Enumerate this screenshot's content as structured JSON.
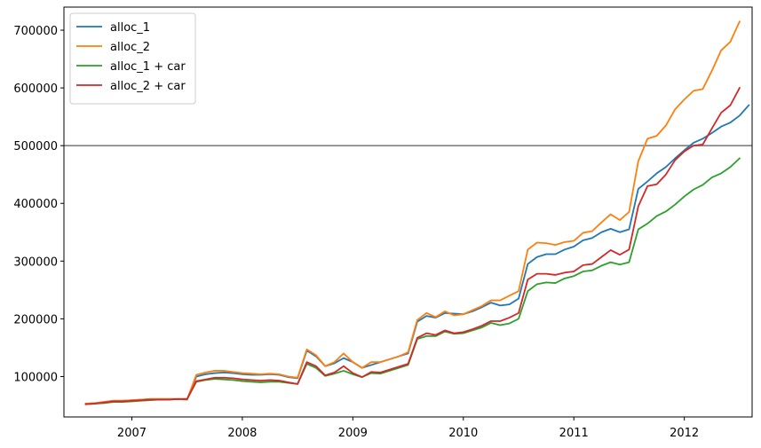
{
  "chart_data": {
    "type": "line",
    "title": "",
    "xlabel": "",
    "ylabel": "",
    "x_start": "2006-08",
    "x_step": "monthly",
    "xlim": [
      "2006-05-20",
      "2012-08-12"
    ],
    "ylim": [
      30000,
      740000
    ],
    "x_tick_labels": [
      "2007",
      "2008",
      "2009",
      "2010",
      "2011",
      "2012"
    ],
    "y_tick_values": [
      100000,
      200000,
      300000,
      400000,
      500000,
      600000,
      700000
    ],
    "y_tick_labels": [
      "100000",
      "200000",
      "300000",
      "400000",
      "500000",
      "600000",
      "700000"
    ],
    "hline": {
      "y": 500000,
      "color": "#808080"
    },
    "legend_position": "upper-left",
    "series": [
      {
        "name": "alloc_1",
        "color": "#1f77b4",
        "values": [
          53000,
          54000,
          56000,
          58000,
          58000,
          59000,
          60000,
          61000,
          61000,
          61000,
          61000,
          60000,
          100000,
          104000,
          106000,
          107000,
          106000,
          104000,
          103000,
          103000,
          104000,
          103000,
          99000,
          97000,
          145000,
          135000,
          118000,
          123000,
          132000,
          125000,
          115000,
          120000,
          125000,
          130000,
          135000,
          140000,
          195000,
          205000,
          202000,
          210000,
          209000,
          208000,
          213000,
          220000,
          228000,
          223000,
          225000,
          235000,
          295000,
          307000,
          312000,
          312000,
          320000,
          325000,
          336000,
          340000,
          350000,
          356000,
          350000,
          355000,
          425000,
          438000,
          452000,
          463000,
          478000,
          492000,
          505000,
          512000,
          522000,
          533000,
          540000,
          552000,
          570000
        ]
      },
      {
        "name": "alloc_2",
        "color": "#ff7f0e",
        "values": [
          53000,
          54000,
          56000,
          58000,
          58000,
          59000,
          60000,
          61000,
          61000,
          61000,
          61000,
          60000,
          103000,
          107000,
          110000,
          110000,
          108000,
          106000,
          105000,
          104000,
          105000,
          104000,
          100000,
          98000,
          147000,
          137000,
          118000,
          125000,
          140000,
          125000,
          115000,
          125000,
          125000,
          130000,
          135000,
          142000,
          198000,
          210000,
          203000,
          213000,
          206000,
          208000,
          215000,
          222000,
          232000,
          232000,
          240000,
          248000,
          320000,
          332000,
          331000,
          328000,
          333000,
          335000,
          349000,
          352000,
          367000,
          381000,
          371000,
          385000,
          473000,
          512000,
          517000,
          535000,
          563000,
          580000,
          595000,
          598000,
          630000,
          665000,
          680000,
          715000
        ]
      },
      {
        "name": "alloc_1 + car",
        "color": "#2ca02c",
        "values": [
          52000,
          53000,
          54000,
          56000,
          56000,
          57000,
          58000,
          59000,
          60000,
          60000,
          61000,
          61000,
          91000,
          94000,
          96000,
          95000,
          94000,
          92000,
          91000,
          90000,
          91000,
          91000,
          89000,
          87000,
          122000,
          115000,
          101000,
          105000,
          110000,
          104000,
          99000,
          106000,
          105000,
          110000,
          115000,
          120000,
          165000,
          170000,
          170000,
          178000,
          174000,
          175000,
          180000,
          185000,
          193000,
          189000,
          192000,
          200000,
          248000,
          260000,
          263000,
          262000,
          270000,
          274000,
          282000,
          284000,
          292000,
          298000,
          294000,
          298000,
          355000,
          365000,
          378000,
          386000,
          398000,
          412000,
          424000,
          432000,
          445000,
          452000,
          463000,
          478000
        ]
      },
      {
        "name": "alloc_2 + car",
        "color": "#d62728",
        "values": [
          52000,
          53000,
          55000,
          57000,
          57000,
          58000,
          59000,
          60000,
          60000,
          60000,
          61000,
          61000,
          92000,
          95000,
          98000,
          98000,
          97000,
          95000,
          94000,
          93000,
          94000,
          93000,
          90000,
          87000,
          125000,
          118000,
          102000,
          107000,
          118000,
          106000,
          99000,
          108000,
          107000,
          112000,
          117000,
          122000,
          167000,
          175000,
          172000,
          180000,
          175000,
          177000,
          182000,
          188000,
          196000,
          196000,
          202000,
          210000,
          268000,
          278000,
          278000,
          276000,
          280000,
          282000,
          293000,
          295000,
          307000,
          319000,
          311000,
          320000,
          395000,
          430000,
          433000,
          450000,
          475000,
          490000,
          500000,
          502000,
          530000,
          557000,
          570000,
          600000
        ]
      }
    ]
  }
}
